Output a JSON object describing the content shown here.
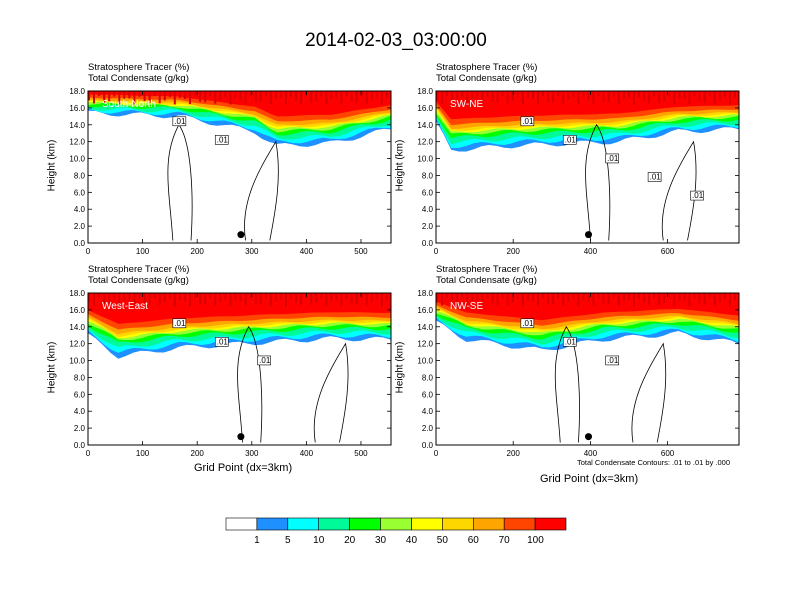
{
  "title": "2014-02-03_03:00:00",
  "panel_header_line1": "Stratosphere Tracer   (%)",
  "panel_header_line2": "Total Condensate   (g/kg)",
  "contour_note": "Total Condensate Contours: .01 to .01 by .000",
  "colors": {
    "levels": [
      "#ffffff",
      "#1e90ff",
      "#00ffff",
      "#00fa9a",
      "#00ff00",
      "#9aff32",
      "#ffff00",
      "#ffd700",
      "#ffa500",
      "#ff4500",
      "#ff0000"
    ]
  },
  "colorbar": {
    "ticks": [
      "1",
      "5",
      "10",
      "20",
      "30",
      "40",
      "50",
      "60",
      "70",
      "100"
    ]
  },
  "chart_data": [
    {
      "type": "heatmap",
      "name": "South-North",
      "xlabel": "",
      "ylabel": "Height (km)",
      "xlim": [
        0,
        555
      ],
      "ylim": [
        0,
        18
      ],
      "xticks": [
        "0",
        "100",
        "200",
        "300",
        "400",
        "500"
      ],
      "yticks": [
        "0.0",
        "2.0",
        "4.0",
        "6.0",
        "8.0",
        "10.0",
        "12.0",
        "14.0",
        "16.0",
        "18.0"
      ],
      "contour_labels": [
        ".01",
        ".01"
      ],
      "marker": {
        "x": 280,
        "y": 1.0
      }
    },
    {
      "type": "heatmap",
      "name": "SW-NE",
      "xlabel": "",
      "ylabel": "Height (km)",
      "xlim": [
        0,
        785
      ],
      "ylim": [
        0,
        18
      ],
      "xticks": [
        "0",
        "200",
        "400",
        "600"
      ],
      "yticks": [
        "0.0",
        "2.0",
        "4.0",
        "6.0",
        "8.0",
        "10.0",
        "12.0",
        "14.0",
        "16.0",
        "18.0"
      ],
      "contour_labels": [
        ".01",
        ".01",
        ".01",
        ".01",
        ".01"
      ],
      "marker": {
        "x": 395,
        "y": 1.0
      }
    },
    {
      "type": "heatmap",
      "name": "West-East",
      "xlabel": "Grid Point (dx=3km)",
      "ylabel": "Height (km)",
      "xlim": [
        0,
        555
      ],
      "ylim": [
        0,
        18
      ],
      "xticks": [
        "0",
        "100",
        "200",
        "300",
        "400",
        "500"
      ],
      "yticks": [
        "0.0",
        "2.0",
        "4.0",
        "6.0",
        "8.0",
        "10.0",
        "12.0",
        "14.0",
        "16.0",
        "18.0"
      ],
      "contour_labels": [
        ".01",
        ".01",
        ".01"
      ],
      "marker": {
        "x": 280,
        "y": 1.0
      }
    },
    {
      "type": "heatmap",
      "name": "NW-SE",
      "xlabel": "Grid Point (dx=3km)",
      "ylabel": "Height (km)",
      "xlim": [
        0,
        785
      ],
      "ylim": [
        0,
        18
      ],
      "xticks": [
        "0",
        "200",
        "400",
        "600"
      ],
      "yticks": [
        "0.0",
        "2.0",
        "4.0",
        "6.0",
        "8.0",
        "10.0",
        "12.0",
        "14.0",
        "16.0",
        "18.0"
      ],
      "contour_labels": [
        ".01",
        ".01",
        ".01"
      ],
      "marker": {
        "x": 395,
        "y": 1.0
      }
    }
  ]
}
